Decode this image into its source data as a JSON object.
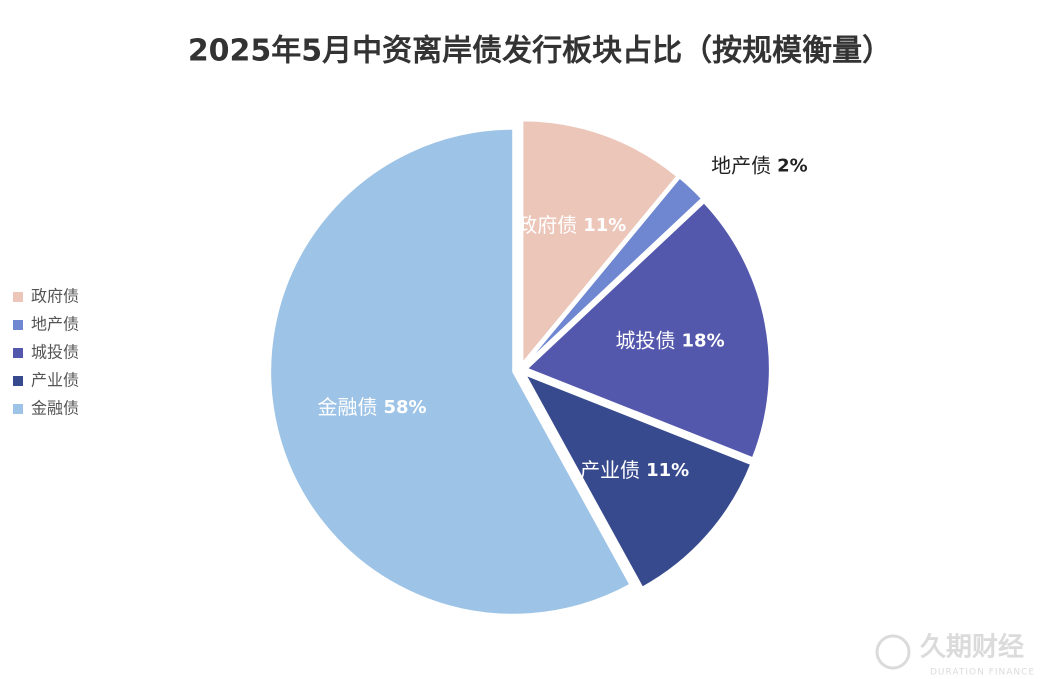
{
  "chart_data": {
    "type": "pie",
    "title": "2025年5月中资离岸债发行板块占比（按规模衡量）",
    "categories": [
      "政府债",
      "地产债",
      "城投债",
      "产业债",
      "金融债"
    ],
    "values": [
      11,
      2,
      18,
      11,
      58
    ],
    "value_labels": [
      "11%",
      "2%",
      "18%",
      "11%",
      "58%"
    ],
    "colors": [
      "#ecc6b9",
      "#6f86d0",
      "#5458ac",
      "#374a8e",
      "#9dc3e6"
    ],
    "legend": "left"
  },
  "watermark": {
    "name": "久期财经",
    "subtitle": "DURATION FINANCE"
  }
}
